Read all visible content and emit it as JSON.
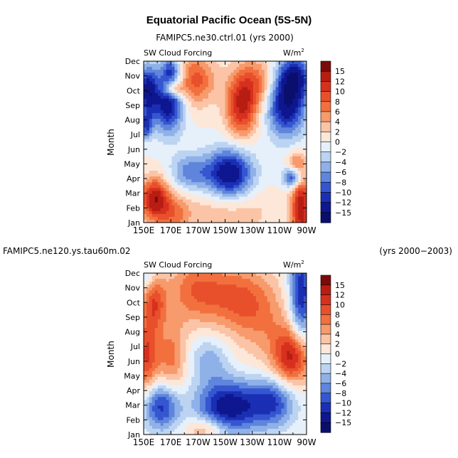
{
  "page": {
    "title": "Equatorial Pacific Ocean (5S-5N)"
  },
  "colorbar": {
    "labels": [
      "15",
      "12",
      "10",
      "8",
      "6",
      "4",
      "2",
      "0",
      "−2",
      "−4",
      "−6",
      "−8",
      "−10",
      "−12",
      "−15"
    ],
    "colors": [
      "#7d0a0a",
      "#b81d12",
      "#d7301f",
      "#e8502c",
      "#f2703e",
      "#f79a6c",
      "#fbc4a6",
      "#fde7d8",
      "#e6f0fb",
      "#bcd4f2",
      "#8fb1e8",
      "#5f85dc",
      "#3556d0",
      "#1b2fb4",
      "#0e178f",
      "#0a0f6d"
    ],
    "levels": [
      15,
      12,
      10,
      8,
      6,
      4,
      2,
      0,
      -2,
      -4,
      -6,
      -8,
      -10,
      -12,
      -15
    ]
  },
  "chart_data": [
    {
      "type": "heatmap",
      "title": "FAMIPC5.ne30.ctrl.01 (yrs 2000)",
      "left_label": "SW Cloud Forcing",
      "right_label_base": "W/m",
      "right_label_sup": "2",
      "ylabel": "Month",
      "xlabel": "",
      "x_tick_labels": [
        "150E",
        "170E",
        "170W",
        "150W",
        "130W",
        "110W",
        "90W"
      ],
      "x_ticks_lon": [
        150,
        170,
        190,
        210,
        230,
        250,
        270
      ],
      "y_tick_labels": [
        "Jan",
        "Feb",
        "Mar",
        "Apr",
        "May",
        "Jun",
        "Jul",
        "Aug",
        "Sep",
        "Oct",
        "Nov",
        "Dec"
      ],
      "x_range_lon": [
        150,
        270
      ],
      "y_range_month": [
        1,
        12
      ],
      "features": [
        {
          "lon": 158,
          "mon": 2.6,
          "amp": 14,
          "sl": 7,
          "sm": 1.0
        },
        {
          "lon": 172,
          "mon": 1.6,
          "amp": 6,
          "sl": 8,
          "sm": 1.0
        },
        {
          "lon": 153,
          "mon": 10.0,
          "amp": -13,
          "sl": 5,
          "sm": 1.2
        },
        {
          "lon": 168,
          "mon": 9.1,
          "amp": -14,
          "sl": 8,
          "sm": 1.4
        },
        {
          "lon": 170,
          "mon": 11.4,
          "amp": -8,
          "sl": 5,
          "sm": 0.6
        },
        {
          "lon": 172,
          "mon": 10.1,
          "amp": 9,
          "sl": 5,
          "sm": 0.35
        },
        {
          "lon": 188,
          "mon": 10.7,
          "amp": 9,
          "sl": 10,
          "sm": 1.2
        },
        {
          "lon": 222,
          "mon": 8.7,
          "amp": 11,
          "sl": 8,
          "sm": 1.4
        },
        {
          "lon": 232,
          "mon": 10.5,
          "amp": 8,
          "sl": 12,
          "sm": 1.2
        },
        {
          "lon": 255,
          "mon": 9.2,
          "amp": -15,
          "sl": 10,
          "sm": 1.6
        },
        {
          "lon": 262,
          "mon": 11.0,
          "amp": -10,
          "sl": 8,
          "sm": 1.0
        },
        {
          "lon": 213,
          "mon": 4.3,
          "amp": -15,
          "sl": 12,
          "sm": 1.2
        },
        {
          "lon": 184,
          "mon": 4.4,
          "amp": -7,
          "sl": 10,
          "sm": 0.9
        },
        {
          "lon": 260,
          "mon": 4.1,
          "amp": -12,
          "sl": 5,
          "sm": 0.5
        },
        {
          "lon": 266,
          "mon": 2.0,
          "amp": 14,
          "sl": 5,
          "sm": 1.6
        },
        {
          "lon": 262,
          "mon": 5.0,
          "amp": 6,
          "sl": 5,
          "sm": 0.6
        },
        {
          "lon": 210,
          "mon": 1.8,
          "amp": 4,
          "sl": 25,
          "sm": 1.2
        },
        {
          "lon": 152,
          "mon": 7.6,
          "amp": -9,
          "sl": 3,
          "sm": 0.6
        }
      ]
    },
    {
      "type": "heatmap",
      "title": "FAMIPC5.ne120.ys.tau60m.02",
      "title_right": "(yrs 2000−2003)",
      "left_label": "SW Cloud Forcing",
      "right_label_base": "W/m",
      "right_label_sup": "2",
      "ylabel": "Month",
      "xlabel": "",
      "x_tick_labels": [
        "150E",
        "170E",
        "170W",
        "150W",
        "130W",
        "110W",
        "90W"
      ],
      "x_ticks_lon": [
        150,
        170,
        190,
        210,
        230,
        250,
        270
      ],
      "y_tick_labels": [
        "Jan",
        "Feb",
        "Mar",
        "Apr",
        "May",
        "Jun",
        "Jul",
        "Aug",
        "Sep",
        "Oct",
        "Nov",
        "Dec"
      ],
      "x_range_lon": [
        150,
        270
      ],
      "y_range_month": [
        1,
        12
      ],
      "features": [
        {
          "lon": 163,
          "mon": 3.0,
          "amp": -12,
          "sl": 10,
          "sm": 1.2
        },
        {
          "lon": 212,
          "mon": 2.9,
          "amp": -14,
          "sl": 16,
          "sm": 1.3
        },
        {
          "lon": 245,
          "mon": 3.2,
          "amp": -10,
          "sl": 12,
          "sm": 1.2
        },
        {
          "lon": 152,
          "mon": 6.3,
          "amp": 10,
          "sl": 6,
          "sm": 2.0
        },
        {
          "lon": 170,
          "mon": 6.0,
          "amp": 7,
          "sl": 8,
          "sm": 2.0
        },
        {
          "lon": 198,
          "mon": 6.1,
          "amp": -5,
          "sl": 10,
          "sm": 1.1
        },
        {
          "lon": 190,
          "mon": 10.8,
          "amp": 8,
          "sl": 16,
          "sm": 1.6
        },
        {
          "lon": 222,
          "mon": 10.2,
          "amp": 7,
          "sl": 15,
          "sm": 1.6
        },
        {
          "lon": 158,
          "mon": 10.0,
          "amp": 8,
          "sl": 6,
          "sm": 1.3
        },
        {
          "lon": 260,
          "mon": 6.3,
          "amp": 13,
          "sl": 10,
          "sm": 1.4
        },
        {
          "lon": 266,
          "mon": 10.5,
          "amp": -12,
          "sl": 6,
          "sm": 2.6
        },
        {
          "lon": 240,
          "mon": 8.5,
          "amp": 4,
          "sl": 15,
          "sm": 2.0
        },
        {
          "lon": 196,
          "mon": 1.4,
          "amp": 6,
          "sl": 10,
          "sm": 0.6
        },
        {
          "lon": 152,
          "mon": 11.7,
          "amp": -4,
          "sl": 5,
          "sm": 0.6
        }
      ]
    }
  ]
}
